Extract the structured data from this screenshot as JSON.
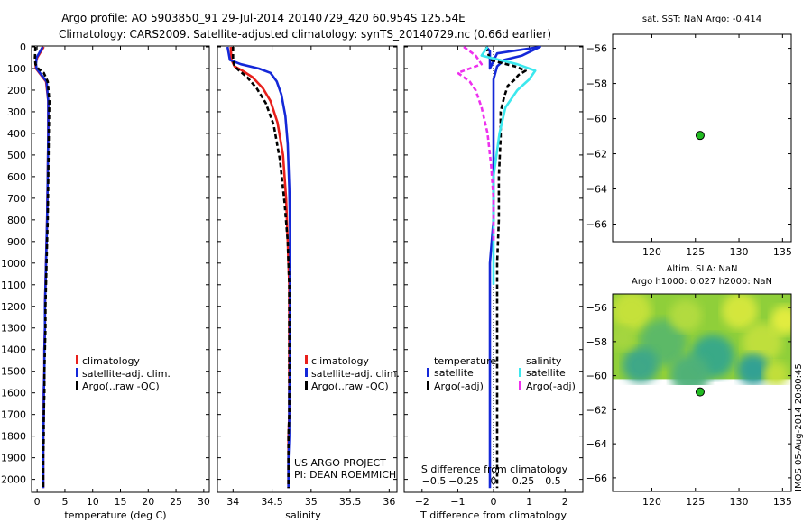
{
  "title": {
    "line1": "Argo profile: AO 5903850_91 29-Jul-2014 20140729_420 60.954S 125.54E",
    "line2": "Climatology: CARS2009. Satellite-adjusted climatology: synTS_20140729.nc (0.66d earlier)"
  },
  "colors": {
    "climatology": "#e8201c",
    "satellite": "#1428d8",
    "argo": "#000000",
    "sal_satellite": "#3ce8ee",
    "sal_argo": "#ee30ee",
    "dot": "#22bb22"
  },
  "chart_data": [
    {
      "name": "temperature-profile",
      "type": "line",
      "xlabel": "temperature (deg C)",
      "ylabel": "",
      "xlim": [
        -1,
        31
      ],
      "ylim": [
        2060,
        0
      ],
      "xticks": [
        0,
        5,
        10,
        15,
        20,
        25,
        30
      ],
      "xtick_labels": [
        "0",
        "5",
        "10",
        "15",
        "20",
        "25",
        "30"
      ],
      "yticks": [
        0,
        100,
        200,
        300,
        400,
        500,
        600,
        700,
        800,
        900,
        1000,
        1100,
        1200,
        1300,
        1400,
        1500,
        1600,
        1700,
        1800,
        1900,
        2000
      ],
      "ytick_labels": [
        "0",
        "100",
        "200",
        "300",
        "400",
        "500",
        "600",
        "700",
        "800",
        "900",
        "1000",
        "1100",
        "1200",
        "1300",
        "1400",
        "1500",
        "1600",
        "1700",
        "1800",
        "1900",
        "2000"
      ],
      "legend": [
        "climatology",
        "satellite-adj. clim.",
        "Argo(..raw -QC)"
      ],
      "series": [
        {
          "name": "climatology",
          "x": [
            1.2,
            0.0,
            -0.3,
            -0.2,
            0.4,
            1.6,
            2.0,
            2.0,
            1.9,
            1.8,
            1.7,
            1.6,
            1.5,
            1.4,
            1.4,
            1.3,
            1.3,
            1.2,
            1.2,
            1.1,
            1.1,
            1.1,
            1.1
          ],
          "y": [
            0,
            50,
            80,
            100,
            120,
            160,
            250,
            400,
            600,
            800,
            900,
            1000,
            1100,
            1200,
            1300,
            1400,
            1500,
            1600,
            1700,
            1800,
            1900,
            2000,
            2040
          ]
        },
        {
          "name": "satellite-adj. clim.",
          "x": [
            1.0,
            -0.1,
            -0.2,
            -0.1,
            0.5,
            1.7,
            2.0,
            2.0,
            1.9,
            1.8,
            1.7,
            1.6,
            1.5,
            1.4,
            1.4,
            1.3,
            1.3,
            1.2,
            1.2,
            1.1,
            1.1,
            1.1,
            1.1
          ],
          "y": [
            0,
            50,
            80,
            100,
            120,
            160,
            250,
            400,
            600,
            800,
            900,
            1000,
            1100,
            1200,
            1300,
            1400,
            1500,
            1600,
            1700,
            1800,
            1900,
            2000,
            2040
          ]
        },
        {
          "name": "Argo(..raw -QC)",
          "x": [
            -0.3,
            -0.4,
            -0.3,
            0.2,
            1.2,
            1.9,
            2.2,
            2.1,
            2.0,
            1.9,
            1.8,
            1.7,
            1.6,
            1.5,
            1.5,
            1.4,
            1.3,
            1.3,
            1.2,
            1.2,
            1.1,
            1.1,
            1.1
          ],
          "y": [
            0,
            50,
            80,
            100,
            120,
            160,
            250,
            400,
            600,
            800,
            900,
            1000,
            1100,
            1200,
            1300,
            1400,
            1500,
            1600,
            1700,
            1800,
            1900,
            2000,
            2040
          ]
        }
      ]
    },
    {
      "name": "salinity-profile",
      "type": "line",
      "xlabel": "salinity",
      "xlim": [
        33.8,
        36.1
      ],
      "ylim": [
        2060,
        0
      ],
      "xticks": [
        34,
        34.5,
        35,
        35.5,
        36
      ],
      "xtick_labels": [
        "34",
        "34.5",
        "35",
        "35.5",
        "36"
      ],
      "legend": [
        "climatology",
        "satellite-adj. clim.",
        "Argo(..raw -QC)"
      ],
      "annotation": [
        "US ARGO PROJECT",
        "PI: DEAN ROEMMICH"
      ],
      "series": [
        {
          "name": "climatology",
          "x": [
            33.97,
            33.98,
            34.02,
            34.12,
            34.25,
            34.38,
            34.48,
            34.57,
            34.64,
            34.68,
            34.7,
            34.71,
            34.72,
            34.72,
            34.72,
            34.72,
            34.72,
            34.72,
            34.72,
            34.71,
            34.71,
            34.71,
            34.71
          ],
          "y": [
            0,
            60,
            90,
            110,
            140,
            190,
            250,
            350,
            500,
            700,
            900,
            1000,
            1100,
            1200,
            1300,
            1400,
            1500,
            1600,
            1700,
            1800,
            1900,
            2000,
            2040
          ]
        },
        {
          "name": "satellite-adj. clim.",
          "x": [
            33.93,
            33.96,
            34.1,
            34.33,
            34.48,
            34.56,
            34.62,
            34.67,
            34.7,
            34.72,
            34.73,
            34.73,
            34.73,
            34.73,
            34.73,
            34.73,
            34.73,
            34.72,
            34.72,
            34.72,
            34.71,
            34.71,
            34.71
          ],
          "y": [
            0,
            60,
            80,
            100,
            120,
            160,
            220,
            320,
            450,
            650,
            850,
            1000,
            1100,
            1200,
            1300,
            1400,
            1500,
            1600,
            1700,
            1800,
            1900,
            2000,
            2040
          ]
        },
        {
          "name": "Argo(..raw -QC)",
          "x": [
            34.0,
            34.0,
            34.02,
            34.08,
            34.18,
            34.3,
            34.42,
            34.52,
            34.6,
            34.66,
            34.7,
            34.71,
            34.72,
            34.72,
            34.72,
            34.72,
            34.72,
            34.72,
            34.72,
            34.71,
            34.71,
            34.71,
            34.71
          ],
          "y": [
            0,
            60,
            90,
            110,
            140,
            190,
            260,
            360,
            520,
            720,
            900,
            1000,
            1100,
            1200,
            1300,
            1400,
            1500,
            1600,
            1700,
            1800,
            1900,
            2000,
            2040
          ]
        }
      ]
    },
    {
      "name": "difference-profile",
      "type": "line",
      "xlabel": "T difference from climatology",
      "top_label": "S difference from climatology",
      "xlim": [
        -2.5,
        2.5
      ],
      "ylim": [
        2060,
        0
      ],
      "xticks": [
        -2,
        -1,
        0,
        1,
        2
      ],
      "xtick_labels": [
        "−2",
        "−1",
        "0",
        "1",
        "2"
      ],
      "sticks": [
        -0.5,
        -0.25,
        0,
        0.25,
        0.5
      ],
      "stick_labels": [
        "−0.5",
        "−0.25",
        "0",
        "0.25",
        "0.5"
      ],
      "legend_titles": [
        "temperature",
        "salinity"
      ],
      "legend": [
        "satellite",
        "Argo(-adj)",
        "satellite",
        "Argo(-adj)"
      ],
      "series": [
        {
          "name": "temperature satellite",
          "x": [
            -0.2,
            -0.1,
            -0.1,
            -0.1,
            -0.1,
            0.1,
            1.3,
            0.8,
            0.3,
            0.1,
            0.0,
            0.0,
            0.0,
            0.0,
            -0.1,
            -0.1,
            -0.1,
            -0.1,
            -0.1,
            -0.1,
            -0.1,
            -0.1,
            -0.1
          ],
          "y": [
            0,
            20,
            50,
            80,
            100,
            30,
            0,
            40,
            60,
            90,
            150,
            300,
            500,
            800,
            1000,
            1200,
            1400,
            1600,
            1800,
            1950,
            2000,
            2030,
            2040
          ]
        },
        {
          "name": "temperature Argo(-adj)",
          "x": [
            -0.2,
            -0.1,
            0.6,
            0.9,
            0.7,
            0.6,
            0.4,
            0.3,
            0.2,
            0.2,
            0.15,
            0.15,
            0.1,
            0.1,
            0.1,
            0.1,
            0.1,
            0.1,
            0.1,
            0.1,
            0.1,
            0.1,
            0.1
          ],
          "y": [
            0,
            60,
            90,
            110,
            130,
            150,
            180,
            230,
            300,
            420,
            600,
            800,
            1000,
            1200,
            1300,
            1400,
            1500,
            1600,
            1700,
            1800,
            1900,
            2000,
            2040
          ]
        },
        {
          "name": "salinity satellite",
          "x": [
            -0.05,
            -0.1,
            0.2,
            0.35,
            0.3,
            0.2,
            0.1,
            0.05,
            0.0,
            0.0,
            0.0
          ],
          "y": [
            0,
            40,
            80,
            110,
            150,
            200,
            280,
            400,
            600,
            900,
            1100
          ]
        },
        {
          "name": "salinity Argo(-adj)",
          "x": [
            -0.25,
            -0.15,
            -0.1,
            -0.3,
            -0.2,
            -0.15,
            -0.1,
            -0.05,
            -0.02,
            0.0,
            0.0
          ],
          "y": [
            0,
            40,
            80,
            120,
            160,
            200,
            280,
            400,
            550,
            700,
            900
          ]
        }
      ]
    },
    {
      "name": "sst-map",
      "type": "scatter",
      "title": "sat. SST: NaN Argo: -0.414",
      "xlim": [
        115.5,
        136
      ],
      "ylim": [
        -67,
        -55.2
      ],
      "xticks": [
        120,
        125,
        130,
        135
      ],
      "xtick_labels": [
        "120",
        "125",
        "130",
        "135"
      ],
      "yticks": [
        -56,
        -58,
        -60,
        -62,
        -64,
        -66
      ],
      "ytick_labels": [
        "−56",
        "−58",
        "−60",
        "−62",
        "−64",
        "−66"
      ],
      "points": [
        {
          "x": 125.54,
          "y": -60.954
        }
      ]
    },
    {
      "name": "sla-map",
      "type": "heatmap",
      "title_line1": "Altim. SLA: NaN",
      "title_line2": "Argo h1000: 0.027 h2000: NaN",
      "xlim": [
        115.5,
        136
      ],
      "ylim": [
        -66.8,
        -55.2
      ],
      "xticks": [
        120,
        125,
        130,
        135
      ],
      "xtick_labels": [
        "120",
        "125",
        "130",
        "135"
      ],
      "yticks": [
        -56,
        -58,
        -60,
        -62,
        -64,
        -66
      ],
      "ytick_labels": [
        "−56",
        "−58",
        "−60",
        "−62",
        "−64",
        "−66"
      ],
      "heatmap_extent_lat": [
        -60.2,
        -55.2
      ],
      "points": [
        {
          "x": 125.54,
          "y": -60.954
        }
      ]
    }
  ],
  "side_stamp": "IMOS 05-Aug-2014 20:00:45"
}
